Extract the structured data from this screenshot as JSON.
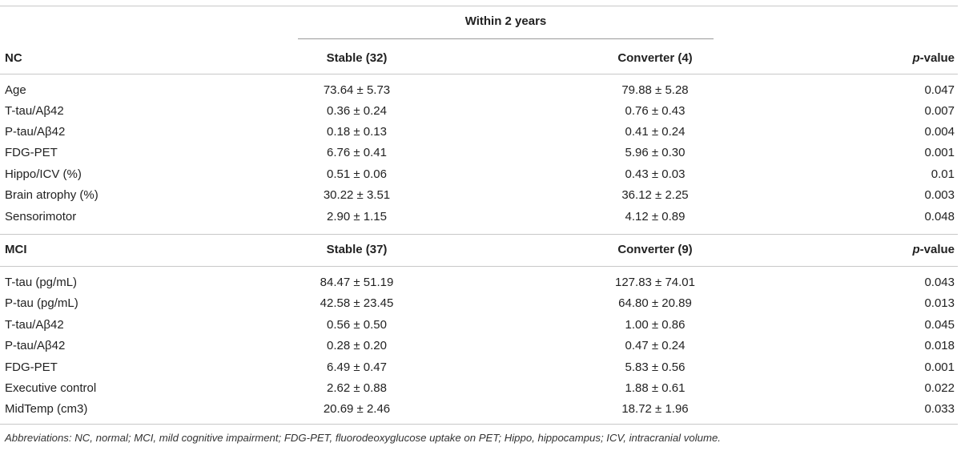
{
  "table": {
    "group_header": "Within 2 years",
    "sections": [
      {
        "label": "NC",
        "col_stable": "Stable (32)",
        "col_converter": "Converter (4)",
        "col_p_italic": "p",
        "col_p_rest": "-value",
        "rows": [
          {
            "name": "Age",
            "stable": "73.64 ± 5.73",
            "converter": "79.88 ± 5.28",
            "p": "0.047"
          },
          {
            "name": "T-tau/Aβ42",
            "stable": "0.36 ± 0.24",
            "converter": "0.76 ± 0.43",
            "p": "0.007"
          },
          {
            "name": "P-tau/Aβ42",
            "stable": "0.18 ± 0.13",
            "converter": "0.41 ± 0.24",
            "p": "0.004"
          },
          {
            "name": "FDG-PET",
            "stable": "6.76 ± 0.41",
            "converter": "5.96 ± 0.30",
            "p": "0.001"
          },
          {
            "name": "Hippo/ICV (%)",
            "stable": "0.51 ± 0.06",
            "converter": "0.43 ± 0.03",
            "p": "0.01"
          },
          {
            "name": "Brain atrophy (%)",
            "stable": "30.22 ± 3.51",
            "converter": "36.12 ± 2.25",
            "p": "0.003"
          },
          {
            "name": "Sensorimotor",
            "stable": "2.90 ± 1.15",
            "converter": "4.12 ± 0.89",
            "p": "0.048"
          }
        ]
      },
      {
        "label": "MCI",
        "col_stable": "Stable (37)",
        "col_converter": "Converter (9)",
        "col_p_italic": "p",
        "col_p_rest": "-value",
        "rows": [
          {
            "name": "T-tau (pg/mL)",
            "stable": "84.47 ± 51.19",
            "converter": "127.83 ± 74.01",
            "p": "0.043"
          },
          {
            "name": "P-tau (pg/mL)",
            "stable": "42.58 ± 23.45",
            "converter": "64.80 ± 20.89",
            "p": "0.013"
          },
          {
            "name": "T-tau/Aβ42",
            "stable": "0.56 ± 0.50",
            "converter": "1.00 ± 0.86",
            "p": "0.045"
          },
          {
            "name": "P-tau/Aβ42",
            "stable": "0.28 ± 0.20",
            "converter": "0.47 ± 0.24",
            "p": "0.018"
          },
          {
            "name": "FDG-PET",
            "stable": "6.49 ± 0.47",
            "converter": "5.83 ± 0.56",
            "p": "0.001"
          },
          {
            "name": "Executive control",
            "stable": "2.62 ± 0.88",
            "converter": "1.88 ± 0.61",
            "p": "0.022"
          },
          {
            "name": "MidTemp (cm3)",
            "stable": "20.69 ± 2.46",
            "converter": "18.72 ± 1.96",
            "p": "0.033"
          }
        ]
      }
    ],
    "footnote": "Abbreviations: NC, normal; MCI, mild cognitive impairment; FDG-PET, fluorodeoxyglucose uptake on PET; Hippo, hippocampus; ICV, intracranial volume."
  }
}
